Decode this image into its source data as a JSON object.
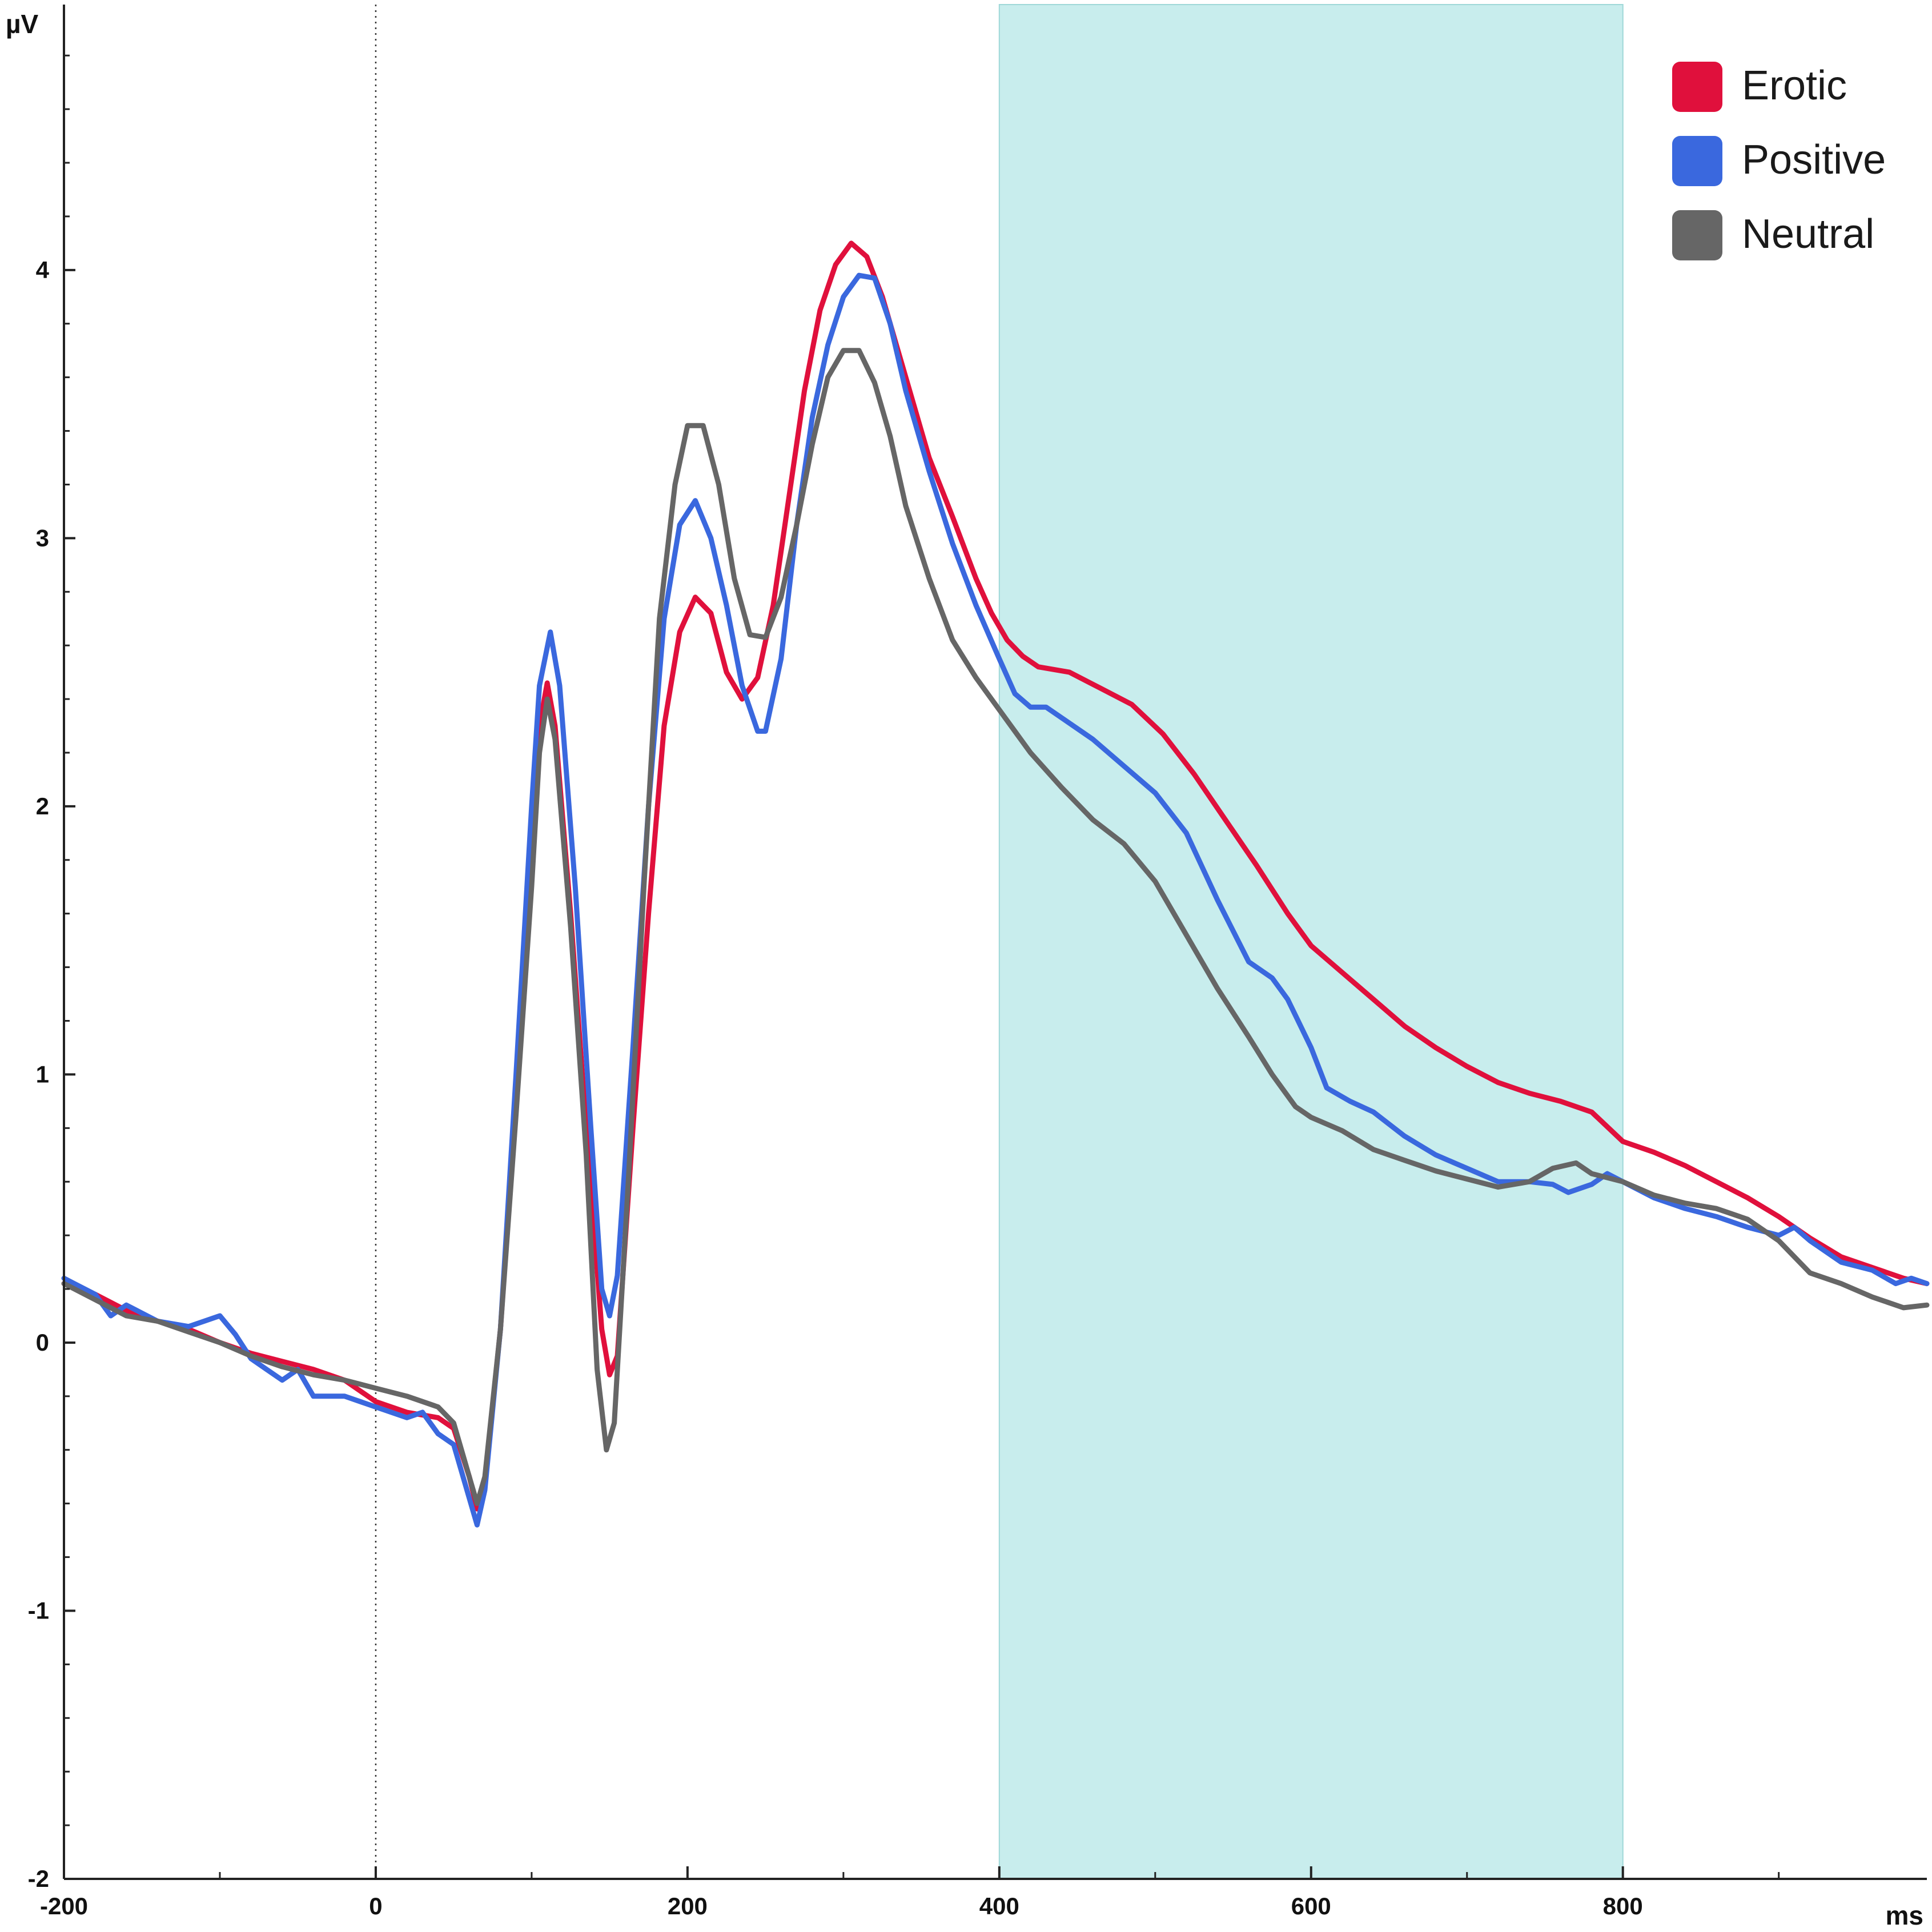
{
  "chart_data": {
    "type": "line",
    "xlabel": "ms",
    "ylabel": "µV",
    "xlim": [
      -200,
      995
    ],
    "ylim": [
      -2,
      4.99
    ],
    "x_ticks": [
      -200,
      0,
      200,
      400,
      600,
      800
    ],
    "x_tick_labels": [
      "-200",
      "0",
      "200",
      "400",
      "600",
      "800"
    ],
    "y_ticks": [
      -2,
      -1,
      0,
      1,
      2,
      3,
      4
    ],
    "y_tick_labels": [
      "-2",
      "-1",
      "0",
      "1",
      "2",
      "3",
      "4"
    ],
    "y_minor_step": 0.2,
    "x_minor_step": 100,
    "grid": false,
    "legend_position": "top-right",
    "onset_marker": {
      "x": 0,
      "style": "dotted"
    },
    "highlight_window": {
      "x_start": 400,
      "x_end": 800,
      "color": "#c8eded"
    },
    "series": [
      {
        "name": "Erotic",
        "color": "#e0103c",
        "points": [
          [
            -200,
            0.22
          ],
          [
            -180,
            0.18
          ],
          [
            -160,
            0.12
          ],
          [
            -140,
            0.08
          ],
          [
            -120,
            0.05
          ],
          [
            -100,
            0.0
          ],
          [
            -80,
            -0.04
          ],
          [
            -60,
            -0.07
          ],
          [
            -40,
            -0.1
          ],
          [
            -20,
            -0.14
          ],
          [
            0,
            -0.22
          ],
          [
            20,
            -0.26
          ],
          [
            40,
            -0.28
          ],
          [
            50,
            -0.32
          ],
          [
            60,
            -0.5
          ],
          [
            65,
            -0.62
          ],
          [
            70,
            -0.52
          ],
          [
            80,
            0.05
          ],
          [
            90,
            0.9
          ],
          [
            100,
            1.8
          ],
          [
            105,
            2.3
          ],
          [
            110,
            2.46
          ],
          [
            115,
            2.3
          ],
          [
            125,
            1.6
          ],
          [
            135,
            0.8
          ],
          [
            145,
            0.05
          ],
          [
            150,
            -0.12
          ],
          [
            155,
            -0.05
          ],
          [
            165,
            0.8
          ],
          [
            175,
            1.6
          ],
          [
            185,
            2.3
          ],
          [
            195,
            2.65
          ],
          [
            205,
            2.78
          ],
          [
            215,
            2.72
          ],
          [
            225,
            2.5
          ],
          [
            235,
            2.4
          ],
          [
            245,
            2.48
          ],
          [
            255,
            2.75
          ],
          [
            265,
            3.15
          ],
          [
            275,
            3.55
          ],
          [
            285,
            3.85
          ],
          [
            295,
            4.02
          ],
          [
            305,
            4.1
          ],
          [
            315,
            4.05
          ],
          [
            325,
            3.9
          ],
          [
            335,
            3.7
          ],
          [
            345,
            3.5
          ],
          [
            355,
            3.3
          ],
          [
            370,
            3.08
          ],
          [
            385,
            2.85
          ],
          [
            395,
            2.72
          ],
          [
            405,
            2.62
          ],
          [
            415,
            2.56
          ],
          [
            425,
            2.52
          ],
          [
            445,
            2.5
          ],
          [
            465,
            2.44
          ],
          [
            485,
            2.38
          ],
          [
            505,
            2.27
          ],
          [
            525,
            2.12
          ],
          [
            545,
            1.95
          ],
          [
            565,
            1.78
          ],
          [
            585,
            1.6
          ],
          [
            600,
            1.48
          ],
          [
            620,
            1.38
          ],
          [
            640,
            1.28
          ],
          [
            660,
            1.18
          ],
          [
            680,
            1.1
          ],
          [
            700,
            1.03
          ],
          [
            720,
            0.97
          ],
          [
            740,
            0.93
          ],
          [
            760,
            0.9
          ],
          [
            780,
            0.86
          ],
          [
            800,
            0.75
          ],
          [
            820,
            0.71
          ],
          [
            840,
            0.66
          ],
          [
            860,
            0.6
          ],
          [
            880,
            0.54
          ],
          [
            900,
            0.47
          ],
          [
            920,
            0.39
          ],
          [
            940,
            0.32
          ],
          [
            960,
            0.28
          ],
          [
            980,
            0.24
          ],
          [
            995,
            0.22
          ]
        ]
      },
      {
        "name": "Positive",
        "color": "#3a68de",
        "points": [
          [
            -200,
            0.24
          ],
          [
            -180,
            0.18
          ],
          [
            -170,
            0.1
          ],
          [
            -160,
            0.14
          ],
          [
            -140,
            0.08
          ],
          [
            -120,
            0.06
          ],
          [
            -110,
            0.08
          ],
          [
            -100,
            0.1
          ],
          [
            -90,
            0.03
          ],
          [
            -80,
            -0.06
          ],
          [
            -70,
            -0.1
          ],
          [
            -60,
            -0.14
          ],
          [
            -50,
            -0.1
          ],
          [
            -40,
            -0.2
          ],
          [
            -20,
            -0.2
          ],
          [
            0,
            -0.24
          ],
          [
            10,
            -0.26
          ],
          [
            20,
            -0.28
          ],
          [
            30,
            -0.26
          ],
          [
            40,
            -0.34
          ],
          [
            50,
            -0.38
          ],
          [
            60,
            -0.58
          ],
          [
            65,
            -0.68
          ],
          [
            70,
            -0.55
          ],
          [
            80,
            0.05
          ],
          [
            90,
            1.0
          ],
          [
            100,
            2.0
          ],
          [
            105,
            2.45
          ],
          [
            112,
            2.65
          ],
          [
            118,
            2.45
          ],
          [
            128,
            1.7
          ],
          [
            138,
            0.8
          ],
          [
            145,
            0.2
          ],
          [
            150,
            0.1
          ],
          [
            155,
            0.25
          ],
          [
            165,
            1.1
          ],
          [
            175,
            2.0
          ],
          [
            185,
            2.7
          ],
          [
            195,
            3.05
          ],
          [
            205,
            3.14
          ],
          [
            215,
            3.0
          ],
          [
            225,
            2.75
          ],
          [
            235,
            2.45
          ],
          [
            245,
            2.28
          ],
          [
            250,
            2.28
          ],
          [
            260,
            2.55
          ],
          [
            270,
            3.05
          ],
          [
            280,
            3.45
          ],
          [
            290,
            3.72
          ],
          [
            300,
            3.9
          ],
          [
            310,
            3.98
          ],
          [
            320,
            3.97
          ],
          [
            330,
            3.8
          ],
          [
            340,
            3.55
          ],
          [
            355,
            3.25
          ],
          [
            370,
            2.98
          ],
          [
            385,
            2.75
          ],
          [
            400,
            2.55
          ],
          [
            410,
            2.42
          ],
          [
            420,
            2.37
          ],
          [
            430,
            2.37
          ],
          [
            440,
            2.33
          ],
          [
            460,
            2.25
          ],
          [
            480,
            2.15
          ],
          [
            500,
            2.05
          ],
          [
            520,
            1.9
          ],
          [
            540,
            1.65
          ],
          [
            560,
            1.42
          ],
          [
            575,
            1.36
          ],
          [
            585,
            1.28
          ],
          [
            600,
            1.1
          ],
          [
            610,
            0.95
          ],
          [
            625,
            0.9
          ],
          [
            640,
            0.86
          ],
          [
            660,
            0.77
          ],
          [
            680,
            0.7
          ],
          [
            700,
            0.65
          ],
          [
            720,
            0.6
          ],
          [
            740,
            0.6
          ],
          [
            755,
            0.59
          ],
          [
            765,
            0.56
          ],
          [
            780,
            0.59
          ],
          [
            790,
            0.63
          ],
          [
            800,
            0.6
          ],
          [
            820,
            0.54
          ],
          [
            840,
            0.5
          ],
          [
            860,
            0.47
          ],
          [
            880,
            0.43
          ],
          [
            900,
            0.4
          ],
          [
            910,
            0.43
          ],
          [
            920,
            0.38
          ],
          [
            940,
            0.3
          ],
          [
            960,
            0.27
          ],
          [
            975,
            0.22
          ],
          [
            985,
            0.24
          ],
          [
            995,
            0.22
          ]
        ]
      },
      {
        "name": "Neutral",
        "color": "#666666",
        "points": [
          [
            -200,
            0.22
          ],
          [
            -180,
            0.16
          ],
          [
            -160,
            0.1
          ],
          [
            -140,
            0.08
          ],
          [
            -120,
            0.04
          ],
          [
            -100,
            0.0
          ],
          [
            -80,
            -0.05
          ],
          [
            -60,
            -0.09
          ],
          [
            -40,
            -0.12
          ],
          [
            -20,
            -0.14
          ],
          [
            0,
            -0.17
          ],
          [
            20,
            -0.2
          ],
          [
            40,
            -0.24
          ],
          [
            50,
            -0.3
          ],
          [
            60,
            -0.5
          ],
          [
            65,
            -0.6
          ],
          [
            70,
            -0.5
          ],
          [
            80,
            0.05
          ],
          [
            90,
            0.85
          ],
          [
            100,
            1.7
          ],
          [
            105,
            2.2
          ],
          [
            110,
            2.4
          ],
          [
            115,
            2.25
          ],
          [
            125,
            1.55
          ],
          [
            135,
            0.7
          ],
          [
            142,
            -0.1
          ],
          [
            148,
            -0.4
          ],
          [
            153,
            -0.3
          ],
          [
            162,
            0.6
          ],
          [
            172,
            1.7
          ],
          [
            182,
            2.7
          ],
          [
            192,
            3.2
          ],
          [
            200,
            3.42
          ],
          [
            210,
            3.42
          ],
          [
            220,
            3.2
          ],
          [
            230,
            2.85
          ],
          [
            240,
            2.64
          ],
          [
            250,
            2.63
          ],
          [
            260,
            2.78
          ],
          [
            270,
            3.05
          ],
          [
            280,
            3.35
          ],
          [
            290,
            3.6
          ],
          [
            300,
            3.7
          ],
          [
            310,
            3.7
          ],
          [
            320,
            3.58
          ],
          [
            330,
            3.38
          ],
          [
            340,
            3.12
          ],
          [
            355,
            2.85
          ],
          [
            370,
            2.62
          ],
          [
            385,
            2.48
          ],
          [
            400,
            2.36
          ],
          [
            420,
            2.2
          ],
          [
            440,
            2.07
          ],
          [
            460,
            1.95
          ],
          [
            480,
            1.86
          ],
          [
            500,
            1.72
          ],
          [
            520,
            1.52
          ],
          [
            540,
            1.32
          ],
          [
            560,
            1.14
          ],
          [
            575,
            1.0
          ],
          [
            590,
            0.88
          ],
          [
            600,
            0.84
          ],
          [
            620,
            0.79
          ],
          [
            640,
            0.72
          ],
          [
            660,
            0.68
          ],
          [
            680,
            0.64
          ],
          [
            700,
            0.61
          ],
          [
            720,
            0.58
          ],
          [
            740,
            0.6
          ],
          [
            755,
            0.65
          ],
          [
            770,
            0.67
          ],
          [
            780,
            0.63
          ],
          [
            800,
            0.6
          ],
          [
            820,
            0.55
          ],
          [
            840,
            0.52
          ],
          [
            860,
            0.5
          ],
          [
            880,
            0.46
          ],
          [
            900,
            0.38
          ],
          [
            920,
            0.26
          ],
          [
            940,
            0.22
          ],
          [
            960,
            0.17
          ],
          [
            980,
            0.13
          ],
          [
            995,
            0.14
          ]
        ]
      }
    ]
  }
}
